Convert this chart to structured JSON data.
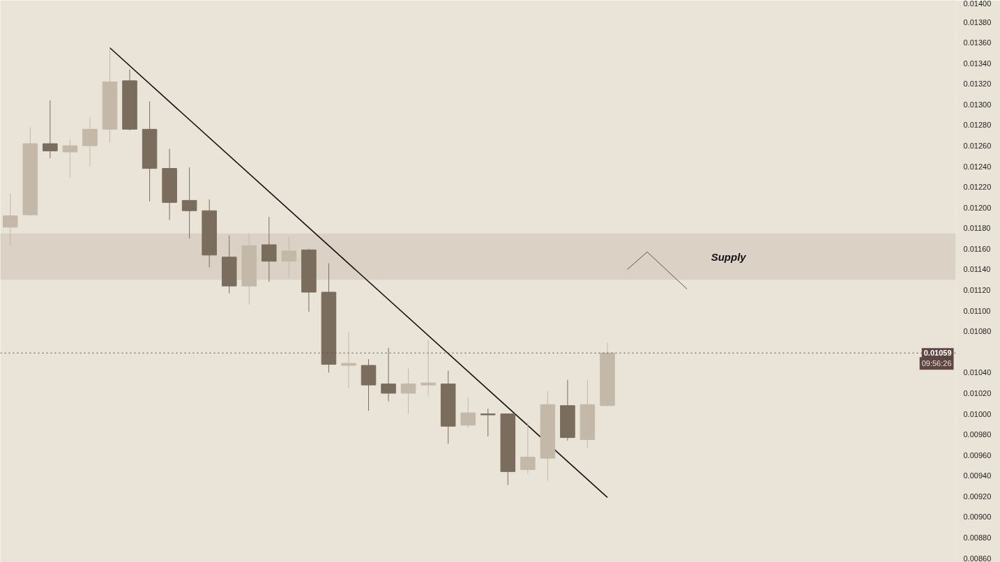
{
  "chart_data": {
    "type": "candlestick",
    "categories": [
      null,
      null,
      null,
      null,
      null,
      null,
      null,
      null,
      null,
      null,
      null,
      null,
      null,
      null,
      null,
      null,
      null,
      null,
      null,
      null,
      null,
      null,
      null,
      null,
      null,
      null,
      null,
      null,
      null,
      null,
      null,
      null,
      null,
      null,
      null,
      null,
      null,
      null,
      null,
      null,
      null,
      null,
      null,
      null,
      null,
      null,
      null,
      null
    ],
    "ohlc": [
      [
        0.01181,
        0.01214,
        0.01163,
        0.01192
      ],
      [
        0.01193,
        0.01278,
        0.01192,
        0.01262
      ],
      [
        0.01262,
        0.01304,
        0.01248,
        0.01255
      ],
      [
        0.01254,
        0.01266,
        0.01229,
        0.0126
      ],
      [
        0.0126,
        0.01288,
        0.0124,
        0.01276
      ],
      [
        0.01276,
        0.01355,
        0.01263,
        0.01322
      ],
      [
        0.01323,
        0.01334,
        0.01275,
        0.01276
      ],
      [
        0.01276,
        0.01303,
        0.01206,
        0.01238
      ],
      [
        0.01238,
        0.01257,
        0.01188,
        0.01205
      ],
      [
        0.01207,
        0.01239,
        0.0117,
        0.01197
      ],
      [
        0.01197,
        0.01208,
        0.01142,
        0.01154
      ],
      [
        0.01152,
        0.01173,
        0.01117,
        0.01124
      ],
      [
        0.01124,
        0.01175,
        0.01106,
        0.01163
      ],
      [
        0.01164,
        0.01191,
        0.01128,
        0.01148
      ],
      [
        0.01148,
        0.01172,
        0.01132,
        0.01158
      ],
      [
        0.01159,
        0.0116,
        0.01099,
        0.01118
      ],
      [
        0.01118,
        0.01146,
        0.0104,
        0.01048
      ],
      [
        0.01047,
        0.01079,
        0.01025,
        0.01049
      ],
      [
        0.01047,
        0.01053,
        0.01003,
        0.01028
      ],
      [
        0.01029,
        0.01064,
        0.01012,
        0.0102
      ],
      [
        0.0102,
        0.01044,
        0.01,
        0.01029
      ],
      [
        0.01028,
        0.01072,
        0.01017,
        0.0103
      ],
      [
        0.01029,
        0.01042,
        0.00971,
        0.00988
      ],
      [
        0.00989,
        0.01016,
        0.00986,
        0.01001
      ],
      [
        0.01,
        0.01005,
        0.00978,
        0.00999
      ],
      [
        0.01,
        0.01,
        0.00931,
        0.00944
      ],
      [
        0.00946,
        0.00992,
        0.00942,
        0.00958
      ],
      [
        0.00957,
        0.01022,
        0.00935,
        0.01009
      ],
      [
        0.01008,
        0.01033,
        0.00974,
        0.00977
      ],
      [
        0.00975,
        0.01033,
        0.00967,
        0.01009
      ],
      [
        0.01008,
        0.01069,
        0.01007,
        0.01059
      ],
      null,
      null,
      null,
      null,
      null,
      null,
      null,
      null,
      null,
      null,
      null,
      null,
      null,
      null,
      null,
      null,
      null
    ],
    "colors": [
      "#c4b9a8",
      "#c4b9a8",
      "#7a6d5d",
      "#c4b9a8",
      "#c4b9a8",
      "#c4b9a8",
      "#7a6d5d",
      "#7a6d5d",
      "#7a6d5d",
      "#7a6d5d",
      "#7a6d5d",
      "#7a6d5d",
      "#c4b9a8",
      "#7a6d5d",
      "#c4b9a8",
      "#7a6d5d",
      "#7a6d5d",
      "#c4b9a8",
      "#7a6d5d",
      "#7a6d5d",
      "#c4b9a8",
      "#c4b9a8",
      "#7a6d5d",
      "#c4b9a8",
      "#7a6d5d",
      "#7a6d5d",
      "#c4b9a8",
      "#c4b9a8",
      "#7a6d5d",
      "#c4b9a8",
      "#c4b9a8",
      null,
      null,
      null,
      null,
      null,
      null,
      null,
      null,
      null,
      null,
      null,
      null,
      null,
      null,
      null,
      null,
      null
    ],
    "series": [
      {
        "type": "line",
        "color": "#111111",
        "values": [
          null,
          null,
          null,
          null,
          null,
          0.01355,
          null,
          null,
          null,
          null,
          null,
          null,
          null,
          null,
          null,
          null,
          null,
          null,
          null,
          null,
          null,
          null,
          null,
          null,
          null,
          null,
          null,
          null,
          null,
          null,
          0.00919,
          null,
          null,
          null,
          null,
          null,
          null,
          null,
          null,
          null,
          null,
          null,
          null,
          null,
          null,
          null,
          null,
          null
        ]
      },
      {
        "type": "line",
        "color": "#555555",
        "values": [
          null,
          null,
          null,
          null,
          null,
          null,
          null,
          null,
          null,
          null,
          null,
          null,
          null,
          null,
          null,
          null,
          null,
          null,
          null,
          null,
          null,
          null,
          null,
          null,
          null,
          null,
          null,
          null,
          null,
          null,
          null,
          0.0114,
          0.01157,
          null,
          0.01121,
          null,
          null,
          null,
          null,
          null,
          null,
          null,
          null,
          null,
          null,
          null,
          null,
          null
        ]
      }
    ],
    "ylim": [
      0.00856,
      0.01401
    ],
    "yticks": [
      {
        "value": 0.0086,
        "label": "0.00860"
      },
      {
        "value": 0.0088,
        "label": "0.00880"
      },
      {
        "value": 0.009,
        "label": "0.00900"
      },
      {
        "value": 0.0092,
        "label": "0.00920"
      },
      {
        "value": 0.0094,
        "label": "0.00940"
      },
      {
        "value": 0.0096,
        "label": "0.00960"
      },
      {
        "value": 0.0098,
        "label": "0.00980"
      },
      {
        "value": 0.01,
        "label": "0.01000"
      },
      {
        "value": 0.0102,
        "label": "0.01020"
      },
      {
        "value": 0.0104,
        "label": "0.01040"
      },
      {
        "value": 0.0108,
        "label": "0.01080"
      },
      {
        "value": 0.011,
        "label": "0.01100"
      },
      {
        "value": 0.0112,
        "label": "0.01120"
      },
      {
        "value": 0.0114,
        "label": "0.01140"
      },
      {
        "value": 0.0116,
        "label": "0.01160"
      },
      {
        "value": 0.0118,
        "label": "0.01180"
      },
      {
        "value": 0.012,
        "label": "0.01200"
      },
      {
        "value": 0.0122,
        "label": "0.01220"
      },
      {
        "value": 0.0124,
        "label": "0.01240"
      },
      {
        "value": 0.0126,
        "label": "0.01260"
      },
      {
        "value": 0.0128,
        "label": "0.01280"
      },
      {
        "value": 0.013,
        "label": "0.01300"
      },
      {
        "value": 0.0132,
        "label": "0.01320"
      },
      {
        "value": 0.0134,
        "label": "0.01340"
      },
      {
        "value": 0.0136,
        "label": "0.01360"
      },
      {
        "value": 0.0138,
        "label": "0.01380"
      },
      {
        "value": 0.014,
        "label": "0.01400"
      }
    ],
    "tick_labels": "y",
    "grid": false,
    "ref_lines": [
      {
        "axis": "y",
        "value": 0.01059,
        "label": "0.01059",
        "color": "#5e4642",
        "line_style": "dotted"
      }
    ],
    "bands": [
      {
        "axis": "y",
        "from": 0.0113,
        "to": 0.01175,
        "label": "Supply",
        "color": "#d9cfc3"
      }
    ],
    "annotations": [
      "09:56:26"
    ]
  }
}
